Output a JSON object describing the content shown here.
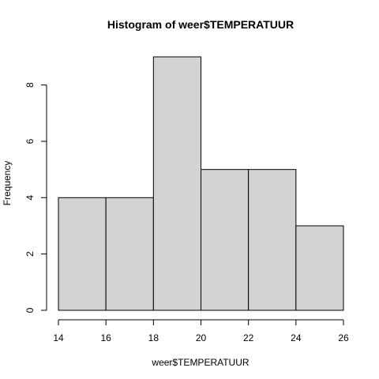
{
  "chart_data": {
    "type": "bar",
    "title": "Histogram of weer$TEMPERATUUR",
    "xlabel": "weer$TEMPERATUUR",
    "ylabel": "Frequency",
    "bins": [
      {
        "start": 14,
        "end": 16,
        "count": 4
      },
      {
        "start": 16,
        "end": 18,
        "count": 4
      },
      {
        "start": 18,
        "end": 20,
        "count": 9
      },
      {
        "start": 20,
        "end": 22,
        "count": 5
      },
      {
        "start": 22,
        "end": 24,
        "count": 5
      },
      {
        "start": 24,
        "end": 26,
        "count": 3
      }
    ],
    "xlim": [
      14,
      26
    ],
    "ylim": [
      0,
      9
    ],
    "xticks": [
      14,
      16,
      18,
      20,
      22,
      24,
      26
    ],
    "yticks": [
      0,
      2,
      4,
      6,
      8
    ],
    "bar_color": "#d3d3d3",
    "grid": false
  }
}
